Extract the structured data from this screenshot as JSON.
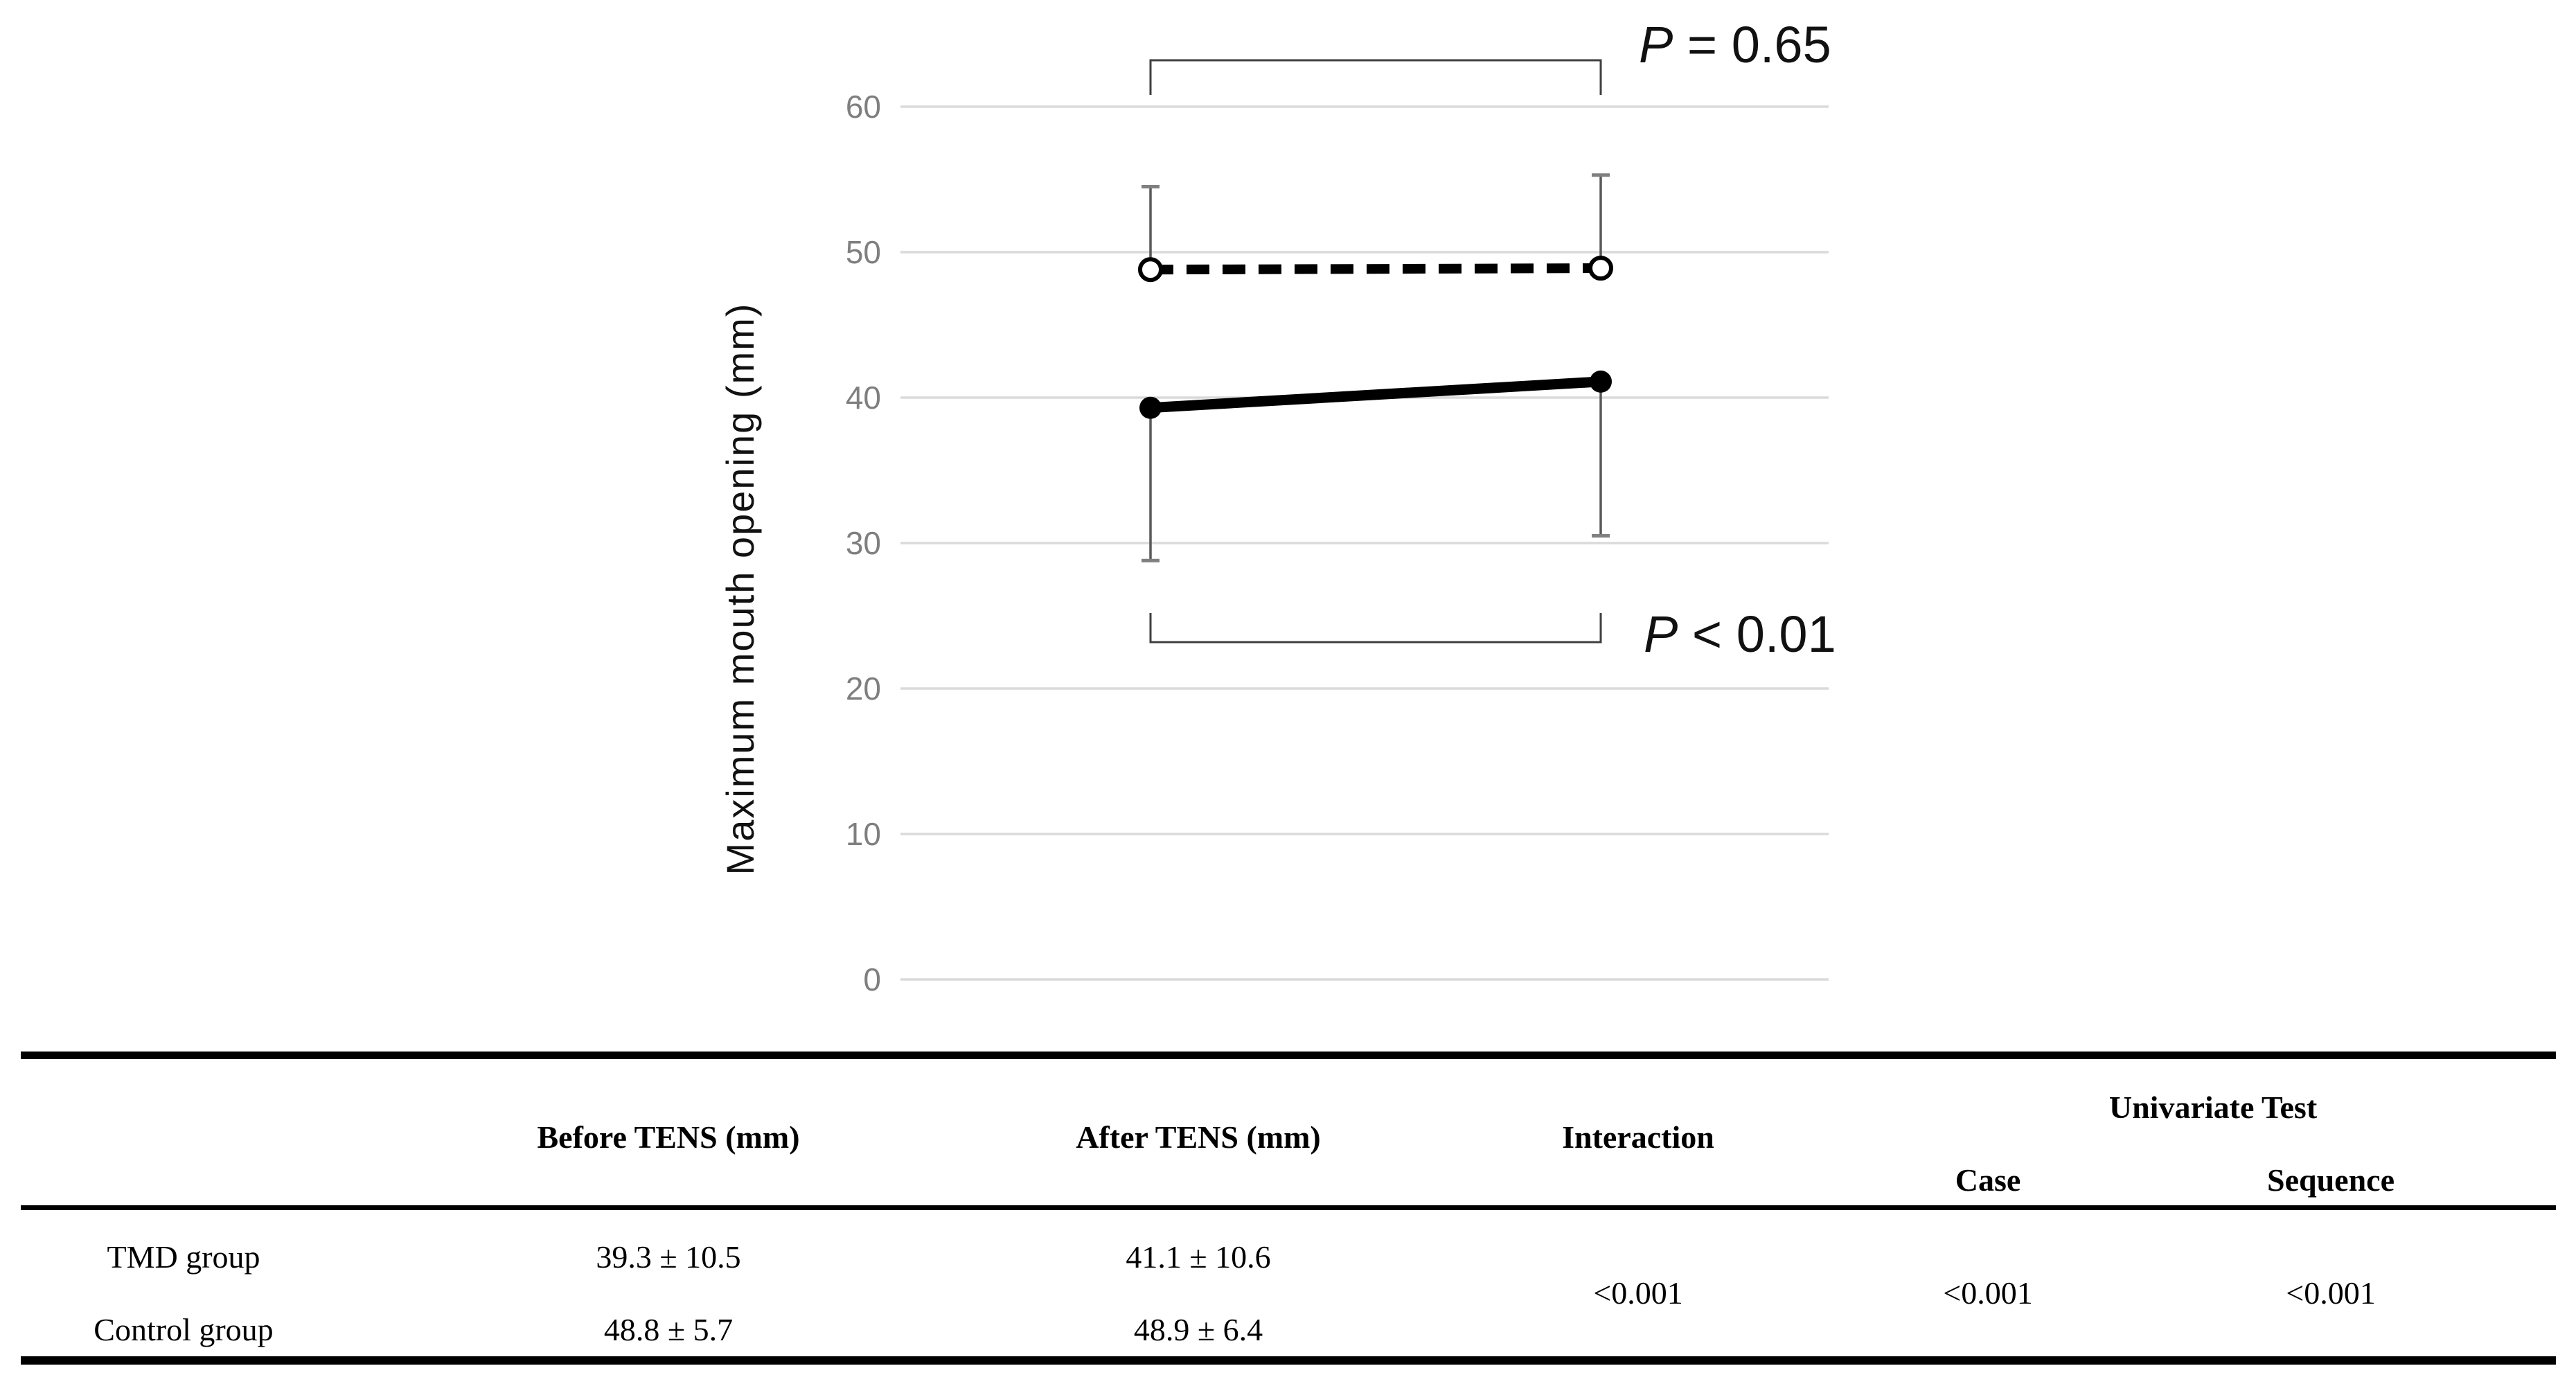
{
  "page": {
    "background": "#ffffff"
  },
  "chart_data": {
    "type": "line",
    "title": "",
    "xlabel": "",
    "ylabel": "Maximum mouth opening (mm)",
    "ylim": [
      0,
      60
    ],
    "yticks": [
      0,
      10,
      20,
      30,
      40,
      50,
      60
    ],
    "categories": [
      "Before TENS",
      "After TENS"
    ],
    "grid": "horizontal",
    "legend": "none",
    "series": [
      {
        "name": "Control group",
        "values": [
          48.8,
          48.9
        ],
        "sd": [
          5.7,
          6.4
        ],
        "line_style": "dashed",
        "marker": "open-circle",
        "error_bar_direction": "up",
        "p_annotation": "P = 0.65"
      },
      {
        "name": "TMD group",
        "values": [
          39.3,
          41.1
        ],
        "sd": [
          10.5,
          10.6
        ],
        "line_style": "solid",
        "marker": "filled-circle",
        "error_bar_direction": "down",
        "p_annotation": "P < 0.01"
      }
    ],
    "colors": {
      "line": "#000000",
      "gridline": "#dadada",
      "tick_label": "#7f7f7f",
      "axis_title": "#111111",
      "error_bar": "#595959",
      "error_bar_cap": "#808080",
      "bracket": "#3f3f3f",
      "annotation": "#111111"
    }
  },
  "table": {
    "header": {
      "corner": "",
      "before": "Before TENS (mm)",
      "after": "After TENS (mm)",
      "interaction": "Interaction",
      "univariate": "Univariate Test",
      "case": "Case",
      "sequence": "Sequence"
    },
    "rows": [
      {
        "label": "TMD group",
        "before": "39.3 ± 10.5",
        "after": "41.1 ± 10.6"
      },
      {
        "label": "Control group",
        "before": "48.8 ± 5.7",
        "after": "48.9 ± 6.4"
      }
    ],
    "p_values": {
      "interaction": "<0.001",
      "case": "<0.001",
      "sequence": "<0.001"
    }
  }
}
